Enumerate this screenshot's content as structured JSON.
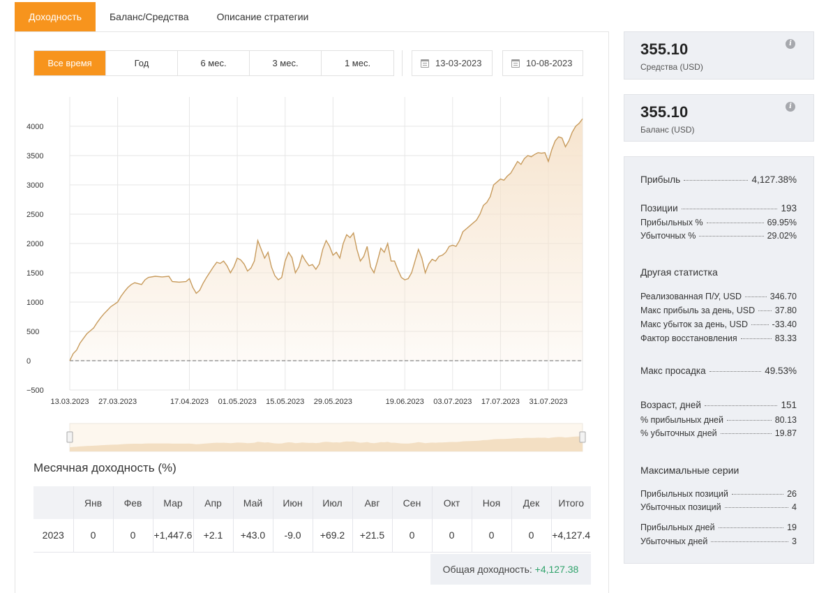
{
  "tabs": [
    {
      "label": "Доходность",
      "active": true
    },
    {
      "label": "Баланс/Средства",
      "active": false
    },
    {
      "label": "Описание стратегии",
      "active": false
    }
  ],
  "periods": [
    {
      "label": "Все время",
      "active": true
    },
    {
      "label": "Год",
      "active": false
    },
    {
      "label": "6 мес.",
      "active": false
    },
    {
      "label": "3 мес.",
      "active": false
    },
    {
      "label": "1 мес.",
      "active": false
    }
  ],
  "date_from": "13-03-2023",
  "date_to": "10-08-2023",
  "colors": {
    "accent": "#f7941d",
    "line": "#c79a5b",
    "fill": "#f6e3cc",
    "positive": "#2ea26a",
    "negative": "#e0433f"
  },
  "chart_data": {
    "type": "area",
    "x_tick_labels": [
      "13.03.2023",
      "27.03.2023",
      "17.04.2023",
      "01.05.2023",
      "15.05.2023",
      "29.05.2023",
      "19.06.2023",
      "03.07.2023",
      "17.07.2023",
      "31.07.2023"
    ],
    "x_tick_dates": [
      "2023-03-13",
      "2023-03-27",
      "2023-04-17",
      "2023-05-01",
      "2023-05-15",
      "2023-05-29",
      "2023-06-19",
      "2023-07-03",
      "2023-07-17",
      "2023-07-31"
    ],
    "y_tick_labels": [
      "4000",
      "3500",
      "3000",
      "2500",
      "2000",
      "1500",
      "1000",
      "500",
      "0",
      "-500"
    ],
    "ylim": [
      -500,
      4500
    ],
    "xlim": [
      "2023-03-13",
      "2023-08-10"
    ],
    "baseline": 0,
    "grid": true,
    "navigator": true,
    "series": [
      {
        "points": [
          [
            "2023-03-13",
            0
          ],
          [
            "2023-03-14",
            120
          ],
          [
            "2023-03-15",
            180
          ],
          [
            "2023-03-16",
            300
          ],
          [
            "2023-03-17",
            380
          ],
          [
            "2023-03-18",
            460
          ],
          [
            "2023-03-20",
            560
          ],
          [
            "2023-03-21",
            650
          ],
          [
            "2023-03-22",
            730
          ],
          [
            "2023-03-23",
            800
          ],
          [
            "2023-03-24",
            860
          ],
          [
            "2023-03-25",
            920
          ],
          [
            "2023-03-27",
            1000
          ],
          [
            "2023-03-28",
            1100
          ],
          [
            "2023-03-29",
            1180
          ],
          [
            "2023-03-30",
            1250
          ],
          [
            "2023-03-31",
            1300
          ],
          [
            "2023-04-01",
            1330
          ],
          [
            "2023-04-03",
            1300
          ],
          [
            "2023-04-04",
            1380
          ],
          [
            "2023-04-05",
            1420
          ],
          [
            "2023-04-07",
            1440
          ],
          [
            "2023-04-09",
            1430
          ],
          [
            "2023-04-11",
            1440
          ],
          [
            "2023-04-12",
            1350
          ],
          [
            "2023-04-14",
            1340
          ],
          [
            "2023-04-16",
            1350
          ],
          [
            "2023-04-17",
            1400
          ],
          [
            "2023-04-18",
            1250
          ],
          [
            "2023-04-19",
            1150
          ],
          [
            "2023-04-20",
            1200
          ],
          [
            "2023-04-21",
            1320
          ],
          [
            "2023-04-22",
            1420
          ],
          [
            "2023-04-24",
            1600
          ],
          [
            "2023-04-25",
            1680
          ],
          [
            "2023-04-26",
            1660
          ],
          [
            "2023-04-27",
            1700
          ],
          [
            "2023-04-28",
            1620
          ],
          [
            "2023-04-29",
            1500
          ],
          [
            "2023-04-30",
            1600
          ],
          [
            "2023-05-01",
            1750
          ],
          [
            "2023-05-02",
            1720
          ],
          [
            "2023-05-03",
            1650
          ],
          [
            "2023-05-04",
            1530
          ],
          [
            "2023-05-05",
            1580
          ],
          [
            "2023-05-06",
            1700
          ],
          [
            "2023-05-07",
            2050
          ],
          [
            "2023-05-08",
            1900
          ],
          [
            "2023-05-09",
            1750
          ],
          [
            "2023-05-10",
            1850
          ],
          [
            "2023-05-11",
            1600
          ],
          [
            "2023-05-12",
            1450
          ],
          [
            "2023-05-13",
            1380
          ],
          [
            "2023-05-14",
            1420
          ],
          [
            "2023-05-15",
            1700
          ],
          [
            "2023-05-16",
            1850
          ],
          [
            "2023-05-17",
            1760
          ],
          [
            "2023-05-18",
            1500
          ],
          [
            "2023-05-19",
            1600
          ],
          [
            "2023-05-20",
            1800
          ],
          [
            "2023-05-21",
            1700
          ],
          [
            "2023-05-22",
            1620
          ],
          [
            "2023-05-23",
            1640
          ],
          [
            "2023-05-24",
            1560
          ],
          [
            "2023-05-25",
            1650
          ],
          [
            "2023-05-26",
            1900
          ],
          [
            "2023-05-27",
            2050
          ],
          [
            "2023-05-28",
            1950
          ],
          [
            "2023-05-29",
            1800
          ],
          [
            "2023-05-30",
            1850
          ],
          [
            "2023-05-31",
            1750
          ],
          [
            "2023-06-01",
            2000
          ],
          [
            "2023-06-02",
            2150
          ],
          [
            "2023-06-03",
            2100
          ],
          [
            "2023-06-04",
            2180
          ],
          [
            "2023-06-05",
            1900
          ],
          [
            "2023-06-06",
            1700
          ],
          [
            "2023-06-07",
            1780
          ],
          [
            "2023-06-08",
            1950
          ],
          [
            "2023-06-09",
            1600
          ],
          [
            "2023-06-10",
            1500
          ],
          [
            "2023-06-11",
            1700
          ],
          [
            "2023-06-12",
            1920
          ],
          [
            "2023-06-13",
            1850
          ],
          [
            "2023-06-14",
            2000
          ],
          [
            "2023-06-15",
            1700
          ],
          [
            "2023-06-16",
            1700
          ],
          [
            "2023-06-17",
            1550
          ],
          [
            "2023-06-18",
            1420
          ],
          [
            "2023-06-19",
            1380
          ],
          [
            "2023-06-20",
            1400
          ],
          [
            "2023-06-21",
            1500
          ],
          [
            "2023-06-22",
            1700
          ],
          [
            "2023-06-23",
            1900
          ],
          [
            "2023-06-24",
            1750
          ],
          [
            "2023-06-25",
            1500
          ],
          [
            "2023-06-26",
            1650
          ],
          [
            "2023-06-27",
            1730
          ],
          [
            "2023-06-28",
            1700
          ],
          [
            "2023-06-29",
            1780
          ],
          [
            "2023-06-30",
            1800
          ],
          [
            "2023-07-01",
            1850
          ],
          [
            "2023-07-02",
            1950
          ],
          [
            "2023-07-03",
            1970
          ],
          [
            "2023-07-04",
            1950
          ],
          [
            "2023-07-05",
            2050
          ],
          [
            "2023-07-06",
            2200
          ],
          [
            "2023-07-07",
            2250
          ],
          [
            "2023-07-08",
            2300
          ],
          [
            "2023-07-10",
            2400
          ],
          [
            "2023-07-11",
            2500
          ],
          [
            "2023-07-12",
            2650
          ],
          [
            "2023-07-13",
            2700
          ],
          [
            "2023-07-14",
            2800
          ],
          [
            "2023-07-15",
            3000
          ],
          [
            "2023-07-16",
            3050
          ],
          [
            "2023-07-17",
            3100
          ],
          [
            "2023-07-18",
            3080
          ],
          [
            "2023-07-19",
            3150
          ],
          [
            "2023-07-20",
            3200
          ],
          [
            "2023-07-21",
            3300
          ],
          [
            "2023-07-22",
            3400
          ],
          [
            "2023-07-23",
            3350
          ],
          [
            "2023-07-24",
            3450
          ],
          [
            "2023-07-25",
            3500
          ],
          [
            "2023-07-26",
            3480
          ],
          [
            "2023-07-27",
            3520
          ],
          [
            "2023-07-28",
            3550
          ],
          [
            "2023-07-29",
            3540
          ],
          [
            "2023-07-30",
            3550
          ],
          [
            "2023-07-31",
            3400
          ],
          [
            "2023-08-01",
            3600
          ],
          [
            "2023-08-02",
            3750
          ],
          [
            "2023-08-03",
            3820
          ],
          [
            "2023-08-04",
            3800
          ],
          [
            "2023-08-05",
            3650
          ],
          [
            "2023-08-06",
            3750
          ],
          [
            "2023-08-07",
            3900
          ],
          [
            "2023-08-08",
            4000
          ],
          [
            "2023-08-09",
            4050
          ],
          [
            "2023-08-10",
            4127
          ]
        ]
      }
    ]
  },
  "monthly": {
    "title": "Месячная доходность (%)",
    "headers": [
      "",
      "Янв",
      "Фев",
      "Мар",
      "Апр",
      "Май",
      "Июн",
      "Июл",
      "Авг",
      "Сен",
      "Окт",
      "Ноя",
      "Дек",
      "Итого"
    ],
    "rows": [
      {
        "cells": [
          {
            "text": "2023",
            "tone": ""
          },
          {
            "text": "0",
            "tone": ""
          },
          {
            "text": "0",
            "tone": ""
          },
          {
            "text": "+1,447.6",
            "tone": "pos"
          },
          {
            "text": "+2.1",
            "tone": "pos"
          },
          {
            "text": "+43.0",
            "tone": "pos"
          },
          {
            "text": "-9.0",
            "tone": "neg"
          },
          {
            "text": "+69.2",
            "tone": "pos"
          },
          {
            "text": "+21.5",
            "tone": "pos"
          },
          {
            "text": "0",
            "tone": ""
          },
          {
            "text": "0",
            "tone": ""
          },
          {
            "text": "0",
            "tone": ""
          },
          {
            "text": "0",
            "tone": ""
          },
          {
            "text": "+4,127.4",
            "tone": "pos"
          }
        ]
      }
    ],
    "total_label": "Общая доходность:",
    "total_value": "+4,127.38"
  },
  "equity_card": {
    "value": "355.10",
    "label": "Средства (USD)",
    "icon": "info-icon"
  },
  "balance_card": {
    "value": "355.10",
    "label": "Баланс (USD)",
    "icon": "info-icon"
  },
  "stats": {
    "profit": {
      "label": "Прибыль",
      "value": "4,127.38%"
    },
    "positions": {
      "label": "Позиции",
      "value": "193"
    },
    "profitable_pct": {
      "label": "Прибыльных %",
      "value": "69.95%"
    },
    "losing_pct": {
      "label": "Убыточных %",
      "value": "29.02%"
    },
    "other_title": "Другая статистка",
    "realized_pl": {
      "label": "Реализованная П/У, USD",
      "value": "346.70"
    },
    "max_profit_day": {
      "label": "Макс прибыль за день, USD",
      "value": "37.80"
    },
    "max_loss_day": {
      "label": "Макс убыток за день, USD",
      "value": "-33.40"
    },
    "recovery_factor": {
      "label": "Фактор восстановления",
      "value": "83.33"
    },
    "max_drawdown": {
      "label": "Макс просадка",
      "value": "49.53%"
    },
    "age_days": {
      "label": "Возраст, дней",
      "value": "151"
    },
    "profitable_days_pct": {
      "label": "% прибыльных дней",
      "value": "80.13"
    },
    "losing_days_pct": {
      "label": "% убыточных дней",
      "value": "19.87"
    },
    "series_title": "Максимальные серии",
    "profitable_positions": {
      "label": "Прибыльных позиций",
      "value": "26"
    },
    "losing_positions": {
      "label": "Убыточных позиций",
      "value": "4"
    },
    "profitable_days": {
      "label": "Прибыльных дней",
      "value": "19"
    },
    "losing_days": {
      "label": "Убыточных дней",
      "value": "3"
    }
  }
}
